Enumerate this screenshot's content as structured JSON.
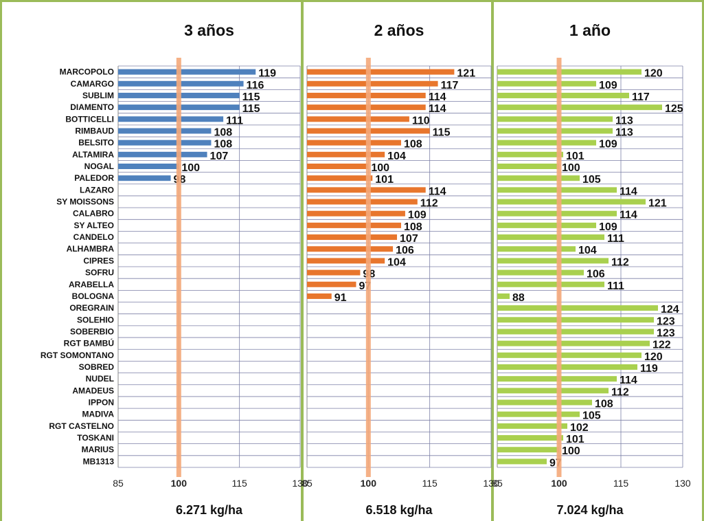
{
  "chart_data": {
    "type": "bar",
    "orientation": "horizontal",
    "categories": [
      "MARCOPOLO",
      "CAMARGO",
      "SUBLIM",
      "DIAMENTO",
      "BOTTICELLI",
      "RIMBAUD",
      "BELSITO",
      "ALTAMIRA",
      "NOGAL",
      "PALEDOR",
      "LAZARO",
      "SY MOISSONS",
      "CALABRO",
      "SY ALTEO",
      "CANDELO",
      "ALHAMBRA",
      "CIPRES",
      "SOFRU",
      "ARABELLA",
      "BOLOGNA",
      "OREGRAIN",
      "SOLEHIO",
      "SOBERBIO",
      "RGT BAMBÚ",
      "RGT SOMONTANO",
      "SOBRED",
      "NUDEL",
      "AMADEUS",
      "IPPON",
      "MADIVA",
      "RGT CASTELNO",
      "TOSKANI",
      "MARIUS",
      "MB1313"
    ],
    "xlim": [
      85,
      130
    ],
    "xticks": [
      85,
      100,
      115,
      130
    ],
    "reference_value": 100,
    "grid": true,
    "panels": [
      {
        "title": "3 años",
        "footer": "6.271 kg/ha",
        "color": "#4f81bd",
        "values": [
          119,
          116,
          115,
          115,
          111,
          108,
          108,
          107,
          100,
          98,
          null,
          null,
          null,
          null,
          null,
          null,
          null,
          null,
          null,
          null,
          null,
          null,
          null,
          null,
          null,
          null,
          null,
          null,
          null,
          null,
          null,
          null,
          null,
          null
        ]
      },
      {
        "title": "2 años",
        "footer": "6.518 kg/ha",
        "color": "#e8762d",
        "values": [
          121,
          117,
          114,
          114,
          110,
          115,
          108,
          104,
          100,
          101,
          114,
          112,
          109,
          108,
          107,
          106,
          104,
          98,
          97,
          91,
          null,
          null,
          null,
          null,
          null,
          null,
          null,
          null,
          null,
          null,
          null,
          null,
          null,
          null
        ]
      },
      {
        "title": "1 año",
        "footer": "7.024 kg/ha",
        "color": "#a9d04f",
        "values": [
          120,
          109,
          117,
          125,
          113,
          113,
          109,
          101,
          100,
          105,
          114,
          121,
          114,
          109,
          111,
          104,
          112,
          106,
          111,
          88,
          124,
          123,
          123,
          122,
          120,
          119,
          114,
          112,
          108,
          105,
          102,
          101,
          100,
          97
        ]
      }
    ]
  },
  "colors": {
    "reference_line": "#f4a97a",
    "border": "#9bbb59",
    "grid": "#7b7fa6"
  }
}
